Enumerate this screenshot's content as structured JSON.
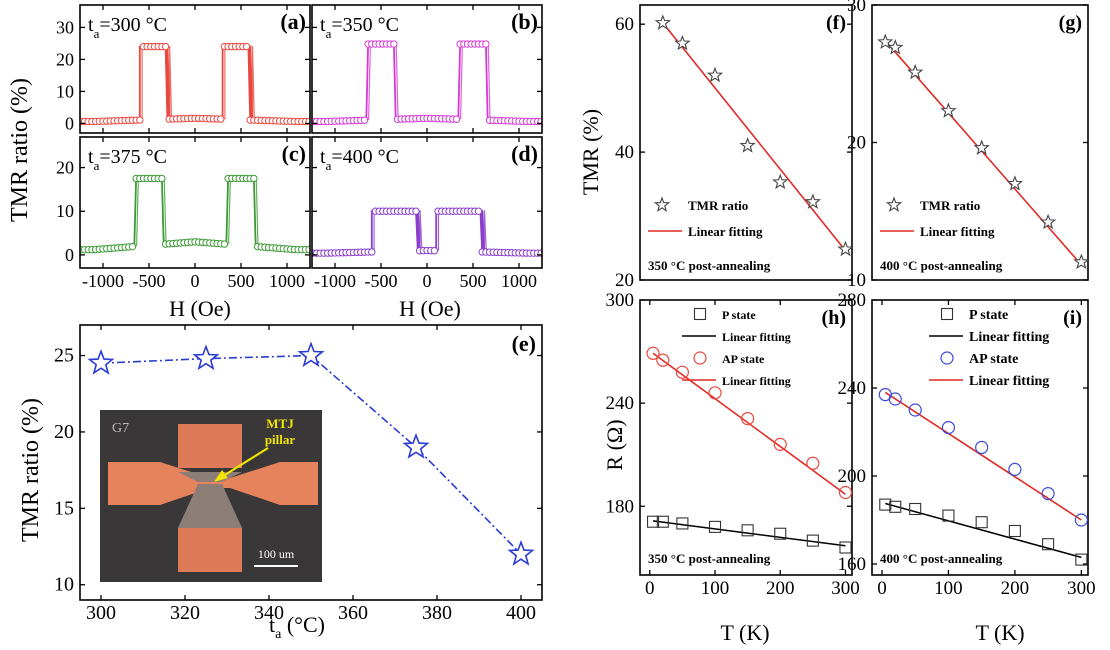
{
  "figure": {
    "shared_labels": {
      "hysteresis_ylabel": "TMR ratio (%)",
      "hysteresis_xlabel": "H (Oe)",
      "e_ylabel": "TMR ratio (%)",
      "e_xlabel": "t",
      "e_xlabel_sub": "a",
      "e_xlabel_unit": " (°C)",
      "fg_ylabel": "TMR (%)",
      "hi_ylabel": "R (Ω)",
      "hi_xlabel": "T (K)"
    },
    "inset": {
      "chip_label": "G7",
      "pointer_label_line1": "MTJ",
      "pointer_label_line2": "pillar",
      "scalebar_label": "100 um"
    }
  },
  "chart_data": [
    {
      "panel": "(a)",
      "type": "line",
      "annotation_prefix": "t",
      "annotation_sub": "a",
      "annotation_value": "=300 °C",
      "color": "#e8483f",
      "xlim": [
        -1250,
        1250
      ],
      "ylim": [
        -3,
        37
      ],
      "xticks": [
        -1000,
        -500,
        0,
        500,
        1000
      ],
      "xtick_labels": [
        "-1000",
        "-500",
        "0",
        "500",
        "1000"
      ],
      "yticks": [
        0,
        10,
        20,
        30
      ],
      "ytick_labels": [
        "0",
        "10",
        "20",
        "30"
      ],
      "show_xticklabels": false,
      "show_yticklabels": true,
      "loop": {
        "plateau": 24,
        "base": 0.6,
        "inner": 300,
        "outer": 600,
        "bump": 1.0
      }
    },
    {
      "panel": "(b)",
      "type": "line",
      "annotation_prefix": "t",
      "annotation_sub": "a",
      "annotation_value": "=350 °C",
      "color": "#d43ad4",
      "xlim": [
        -1250,
        1250
      ],
      "ylim": [
        -3,
        37
      ],
      "xticks": [
        -1000,
        -500,
        0,
        500,
        1000
      ],
      "xtick_labels": [
        "-1000",
        "-500",
        "0",
        "500",
        "1000"
      ],
      "yticks": [
        0,
        10,
        20,
        30
      ],
      "ytick_labels": [
        "0",
        "10",
        "20",
        "30"
      ],
      "show_xticklabels": false,
      "show_yticklabels": false,
      "loop": {
        "plateau": 24.8,
        "base": 0.6,
        "inner": 350,
        "outer": 650,
        "bump": 1.0
      }
    },
    {
      "panel": "(c)",
      "type": "line",
      "annotation_prefix": "t",
      "annotation_sub": "a",
      "annotation_value": "=375 °C",
      "color": "#3d9a35",
      "xlim": [
        -1250,
        1250
      ],
      "ylim": [
        -3,
        27
      ],
      "xticks": [
        -1000,
        -500,
        0,
        500,
        1000
      ],
      "xtick_labels": [
        "-1000",
        "-500",
        "0",
        "500",
        "1000"
      ],
      "yticks": [
        0,
        10,
        20
      ],
      "ytick_labels": [
        "0",
        "10",
        "20"
      ],
      "show_xticklabels": true,
      "show_yticklabels": true,
      "loop": {
        "plateau": 17.5,
        "base": 1.2,
        "inner": 350,
        "outer": 650,
        "bump": 1.8
      }
    },
    {
      "panel": "(d)",
      "type": "line",
      "annotation_prefix": "t",
      "annotation_sub": "a",
      "annotation_value": "=400 °C",
      "color": "#8a3ecb",
      "xlim": [
        -1250,
        1250
      ],
      "ylim": [
        -3,
        27
      ],
      "xticks": [
        -1000,
        -500,
        0,
        500,
        1000
      ],
      "xtick_labels": [
        "-1000",
        "-500",
        "0",
        "500",
        "1000"
      ],
      "yticks": [
        0,
        10,
        20
      ],
      "ytick_labels": [
        "0",
        "10",
        "20"
      ],
      "show_xticklabels": true,
      "show_yticklabels": false,
      "loop": {
        "plateau": 10,
        "base": 0.4,
        "inner": 100,
        "outer": 600,
        "bump": 0.6
      }
    },
    {
      "panel": "(e)",
      "type": "line",
      "color": "#2b3bd6",
      "x": [
        300,
        325,
        350,
        375,
        400
      ],
      "values": [
        24.5,
        24.8,
        25.0,
        19.0,
        12.0
      ],
      "xlim": [
        295,
        405
      ],
      "ylim": [
        9,
        27
      ],
      "xticks": [
        300,
        320,
        340,
        360,
        380,
        400
      ],
      "xtick_labels": [
        "300",
        "320",
        "340",
        "360",
        "380",
        "400"
      ],
      "yticks": [
        10,
        15,
        20,
        25
      ],
      "ytick_labels": [
        "10",
        "15",
        "20",
        "25"
      ]
    },
    {
      "panel": "(f)",
      "type": "scatter",
      "series": [
        {
          "name": "TMR ratio",
          "x": [
            20,
            50,
            100,
            150,
            200,
            250,
            300
          ],
          "values": [
            60.2,
            57,
            52,
            41,
            35.3,
            32.2,
            24.8
          ]
        },
        {
          "name": "Linear fitting",
          "x": [
            20,
            300
          ],
          "values": [
            60.2,
            24.6
          ]
        }
      ],
      "xlim": [
        -15,
        310
      ],
      "ylim": [
        20,
        63
      ],
      "yticks": [
        20,
        40,
        60
      ],
      "ytick_labels": [
        "20",
        "40",
        "60"
      ],
      "annotation": "350 °C post-annealing"
    },
    {
      "panel": "(g)",
      "type": "scatter",
      "series": [
        {
          "name": "TMR ratio",
          "x": [
            5,
            20,
            50,
            100,
            150,
            200,
            250,
            300
          ],
          "values": [
            27.3,
            26.9,
            25.1,
            22.3,
            19.6,
            17.0,
            14.2,
            11.3
          ]
        },
        {
          "name": "Linear fitting",
          "x": [
            5,
            300
          ],
          "values": [
            27.4,
            11.1
          ]
        }
      ],
      "xlim": [
        -15,
        310
      ],
      "ylim": [
        10,
        30
      ],
      "yticks": [
        10,
        20,
        30
      ],
      "ytick_labels": [
        "10",
        "20",
        "30"
      ],
      "annotation": "400 °C post-annealing"
    },
    {
      "panel": "(h)",
      "type": "scatter",
      "series": [
        {
          "name": "P state",
          "x": [
            5,
            20,
            50,
            100,
            150,
            200,
            250,
            300
          ],
          "values": [
            171,
            171,
            170,
            168,
            166,
            164,
            160,
            156
          ]
        },
        {
          "name": "Linear fitting",
          "x": [
            5,
            300
          ],
          "values": [
            171.5,
            157
          ]
        },
        {
          "name": "AP state",
          "x": [
            5,
            20,
            50,
            100,
            150,
            200,
            250,
            300
          ],
          "values": [
            269,
            265,
            258,
            246,
            231,
            216,
            205,
            188
          ]
        },
        {
          "name": "Linear fitting",
          "x": [
            5,
            300
          ],
          "values": [
            269,
            187
          ]
        }
      ],
      "xlim": [
        -15,
        310
      ],
      "ylim": [
        140,
        300
      ],
      "xticks": [
        0,
        100,
        200,
        300
      ],
      "xtick_labels": [
        "0",
        "100",
        "200",
        "300"
      ],
      "yticks": [
        180,
        240,
        300
      ],
      "ytick_labels": [
        "180",
        "240",
        "300"
      ],
      "annotation": "350 °C post-annealing"
    },
    {
      "panel": "(i)",
      "type": "scatter",
      "series": [
        {
          "name": "P state",
          "x": [
            5,
            20,
            50,
            100,
            150,
            200,
            250,
            300
          ],
          "values": [
            187,
            186,
            185,
            182,
            179,
            175,
            169,
            162
          ]
        },
        {
          "name": "Linear fitting",
          "x": [
            5,
            300
          ],
          "values": [
            187.5,
            163
          ]
        },
        {
          "name": "AP state",
          "x": [
            5,
            20,
            50,
            100,
            150,
            200,
            250,
            300
          ],
          "values": [
            237,
            235,
            230,
            222,
            213,
            203,
            192,
            180
          ]
        },
        {
          "name": "Linear fitting",
          "x": [
            5,
            300
          ],
          "values": [
            238,
            180
          ]
        }
      ],
      "xlim": [
        -15,
        310
      ],
      "ylim": [
        155,
        280
      ],
      "xticks": [
        0,
        100,
        200,
        300
      ],
      "xtick_labels": [
        "0",
        "100",
        "200",
        "300"
      ],
      "yticks": [
        160,
        200,
        240,
        280
      ],
      "ytick_labels": [
        "160",
        "200",
        "240",
        "280"
      ],
      "annotation": "400 °C post-annealing"
    }
  ]
}
